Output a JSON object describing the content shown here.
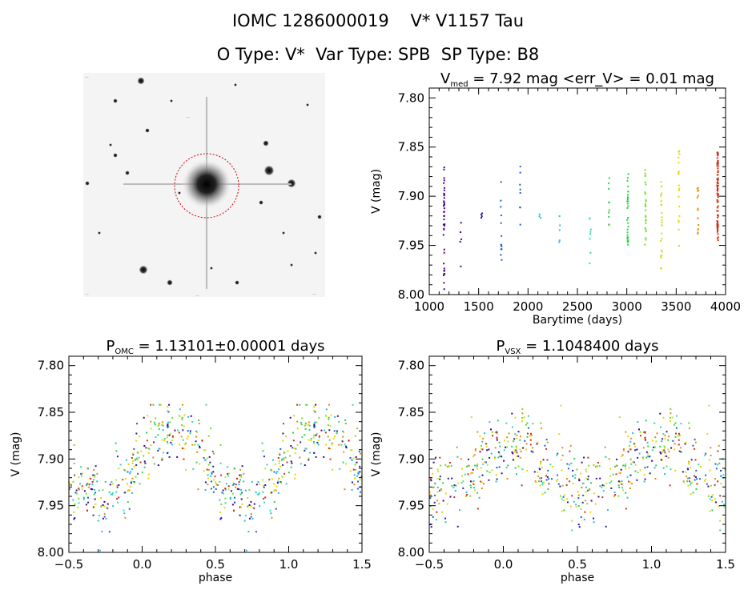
{
  "header": {
    "title_line1": "IOMC 1286000019    V* V1157 Tau",
    "title_line2": "O Type: V*  Var Type: SPB  SP Type: B8"
  },
  "image_panel": {
    "labels": [
      "...",
      "...",
      "...",
      "...",
      "..."
    ],
    "circle_color": "#cc0000"
  },
  "colors": {
    "palette": [
      "#4b0082",
      "#2020a0",
      "#1e60d0",
      "#20c0e0",
      "#30d8b0",
      "#30d050",
      "#70e020",
      "#c8e020",
      "#f0d000",
      "#e88a10",
      "#d03010"
    ]
  },
  "panels": [
    {
      "id": "timeseries",
      "title_main": "V",
      "title_sub": "med",
      "title_rest": " = 7.92 mag <err_V> = 0.01 mag",
      "xlabel": "Barytime (days)",
      "ylabel": "V (mag)",
      "xticks": [
        "1000",
        "1500",
        "2000",
        "2500",
        "3000",
        "3500",
        "4000"
      ],
      "yticks": [
        "7.80",
        "7.85",
        "7.90",
        "7.95",
        "8.00"
      ]
    },
    {
      "id": "phase_omc",
      "title_main": "P",
      "title_sub": "OMC",
      "title_rest": " = 1.13101±0.00001 days",
      "xlabel": "phase",
      "ylabel": "V (mag)",
      "xticks": [
        "−0.5",
        "0.0",
        "0.5",
        "1.0",
        "1.5"
      ],
      "yticks": [
        "7.80",
        "7.85",
        "7.90",
        "7.95",
        "8.00"
      ]
    },
    {
      "id": "phase_vsx",
      "title_main": "P",
      "title_sub": "VSX",
      "title_rest": " = 1.1048400 days",
      "xlabel": "phase",
      "ylabel": "V (mag)",
      "xticks": [
        "−0.5",
        "0.0",
        "0.5",
        "1.0",
        "1.5"
      ],
      "yticks": [
        "7.80",
        "7.85",
        "7.90",
        "7.95",
        "8.00"
      ]
    }
  ],
  "chart_data": [
    {
      "type": "scatter",
      "title": "Vmed = 7.92 mag <err_V> = 0.01 mag",
      "xlabel": "Barytime (days)",
      "ylabel": "V (mag)",
      "xlim": [
        1000,
        4000
      ],
      "ylim": [
        8.0,
        7.79
      ],
      "y_inverted": true,
      "grid": false,
      "clusters": [
        {
          "x": 1150,
          "y_min": 7.87,
          "y_max": 7.995,
          "n": 40,
          "color": "#4b0082"
        },
        {
          "x": 1320,
          "y_min": 7.895,
          "y_max": 7.975,
          "n": 5,
          "color": "#4b0082"
        },
        {
          "x": 1530,
          "y_min": 7.91,
          "y_max": 7.925,
          "n": 4,
          "color": "#2020a0"
        },
        {
          "x": 1730,
          "y_min": 7.885,
          "y_max": 7.965,
          "n": 14,
          "color": "#1e60d0"
        },
        {
          "x": 1920,
          "y_min": 7.86,
          "y_max": 7.935,
          "n": 8,
          "color": "#1e60d0"
        },
        {
          "x": 2120,
          "y_min": 7.915,
          "y_max": 7.925,
          "n": 3,
          "color": "#20c0e0"
        },
        {
          "x": 2320,
          "y_min": 7.92,
          "y_max": 7.95,
          "n": 5,
          "color": "#20c0e0"
        },
        {
          "x": 2630,
          "y_min": 7.915,
          "y_max": 7.975,
          "n": 8,
          "color": "#30d8b0"
        },
        {
          "x": 2820,
          "y_min": 7.88,
          "y_max": 7.93,
          "n": 10,
          "color": "#30d050"
        },
        {
          "x": 3010,
          "y_min": 7.875,
          "y_max": 7.95,
          "n": 32,
          "color": "#30d050"
        },
        {
          "x": 3190,
          "y_min": 7.87,
          "y_max": 7.95,
          "n": 25,
          "color": "#70e020"
        },
        {
          "x": 3350,
          "y_min": 7.885,
          "y_max": 7.975,
          "n": 25,
          "color": "#c8e020"
        },
        {
          "x": 3530,
          "y_min": 7.845,
          "y_max": 7.96,
          "n": 18,
          "color": "#f0d000"
        },
        {
          "x": 3720,
          "y_min": 7.89,
          "y_max": 7.94,
          "n": 15,
          "color": "#e88a10"
        },
        {
          "x": 3920,
          "y_min": 7.855,
          "y_max": 7.945,
          "n": 80,
          "color": "#d03010"
        }
      ]
    },
    {
      "type": "scatter",
      "title": "POMC = 1.13101±0.00001 days",
      "xlabel": "phase",
      "ylabel": "V (mag)",
      "xlim": [
        -0.5,
        1.5
      ],
      "ylim": [
        8.0,
        7.79
      ],
      "y_inverted": true,
      "grid": false,
      "period_model": {
        "mean": 7.905,
        "amplitude": 0.035,
        "peak_phase": [
          -0.3,
          0.7
        ],
        "scatter": 0.018,
        "n_points": 320
      }
    },
    {
      "type": "scatter",
      "title": "PVSX = 1.1048400 days",
      "xlabel": "phase",
      "ylabel": "V (mag)",
      "xlim": [
        -0.5,
        1.5
      ],
      "ylim": [
        8.0,
        7.79
      ],
      "y_inverted": true,
      "grid": false,
      "period_model": {
        "mean": 7.91,
        "amplitude": 0.025,
        "peak_phase": [
          -0.45,
          0.55
        ],
        "scatter": 0.02,
        "n_points": 320
      }
    }
  ]
}
